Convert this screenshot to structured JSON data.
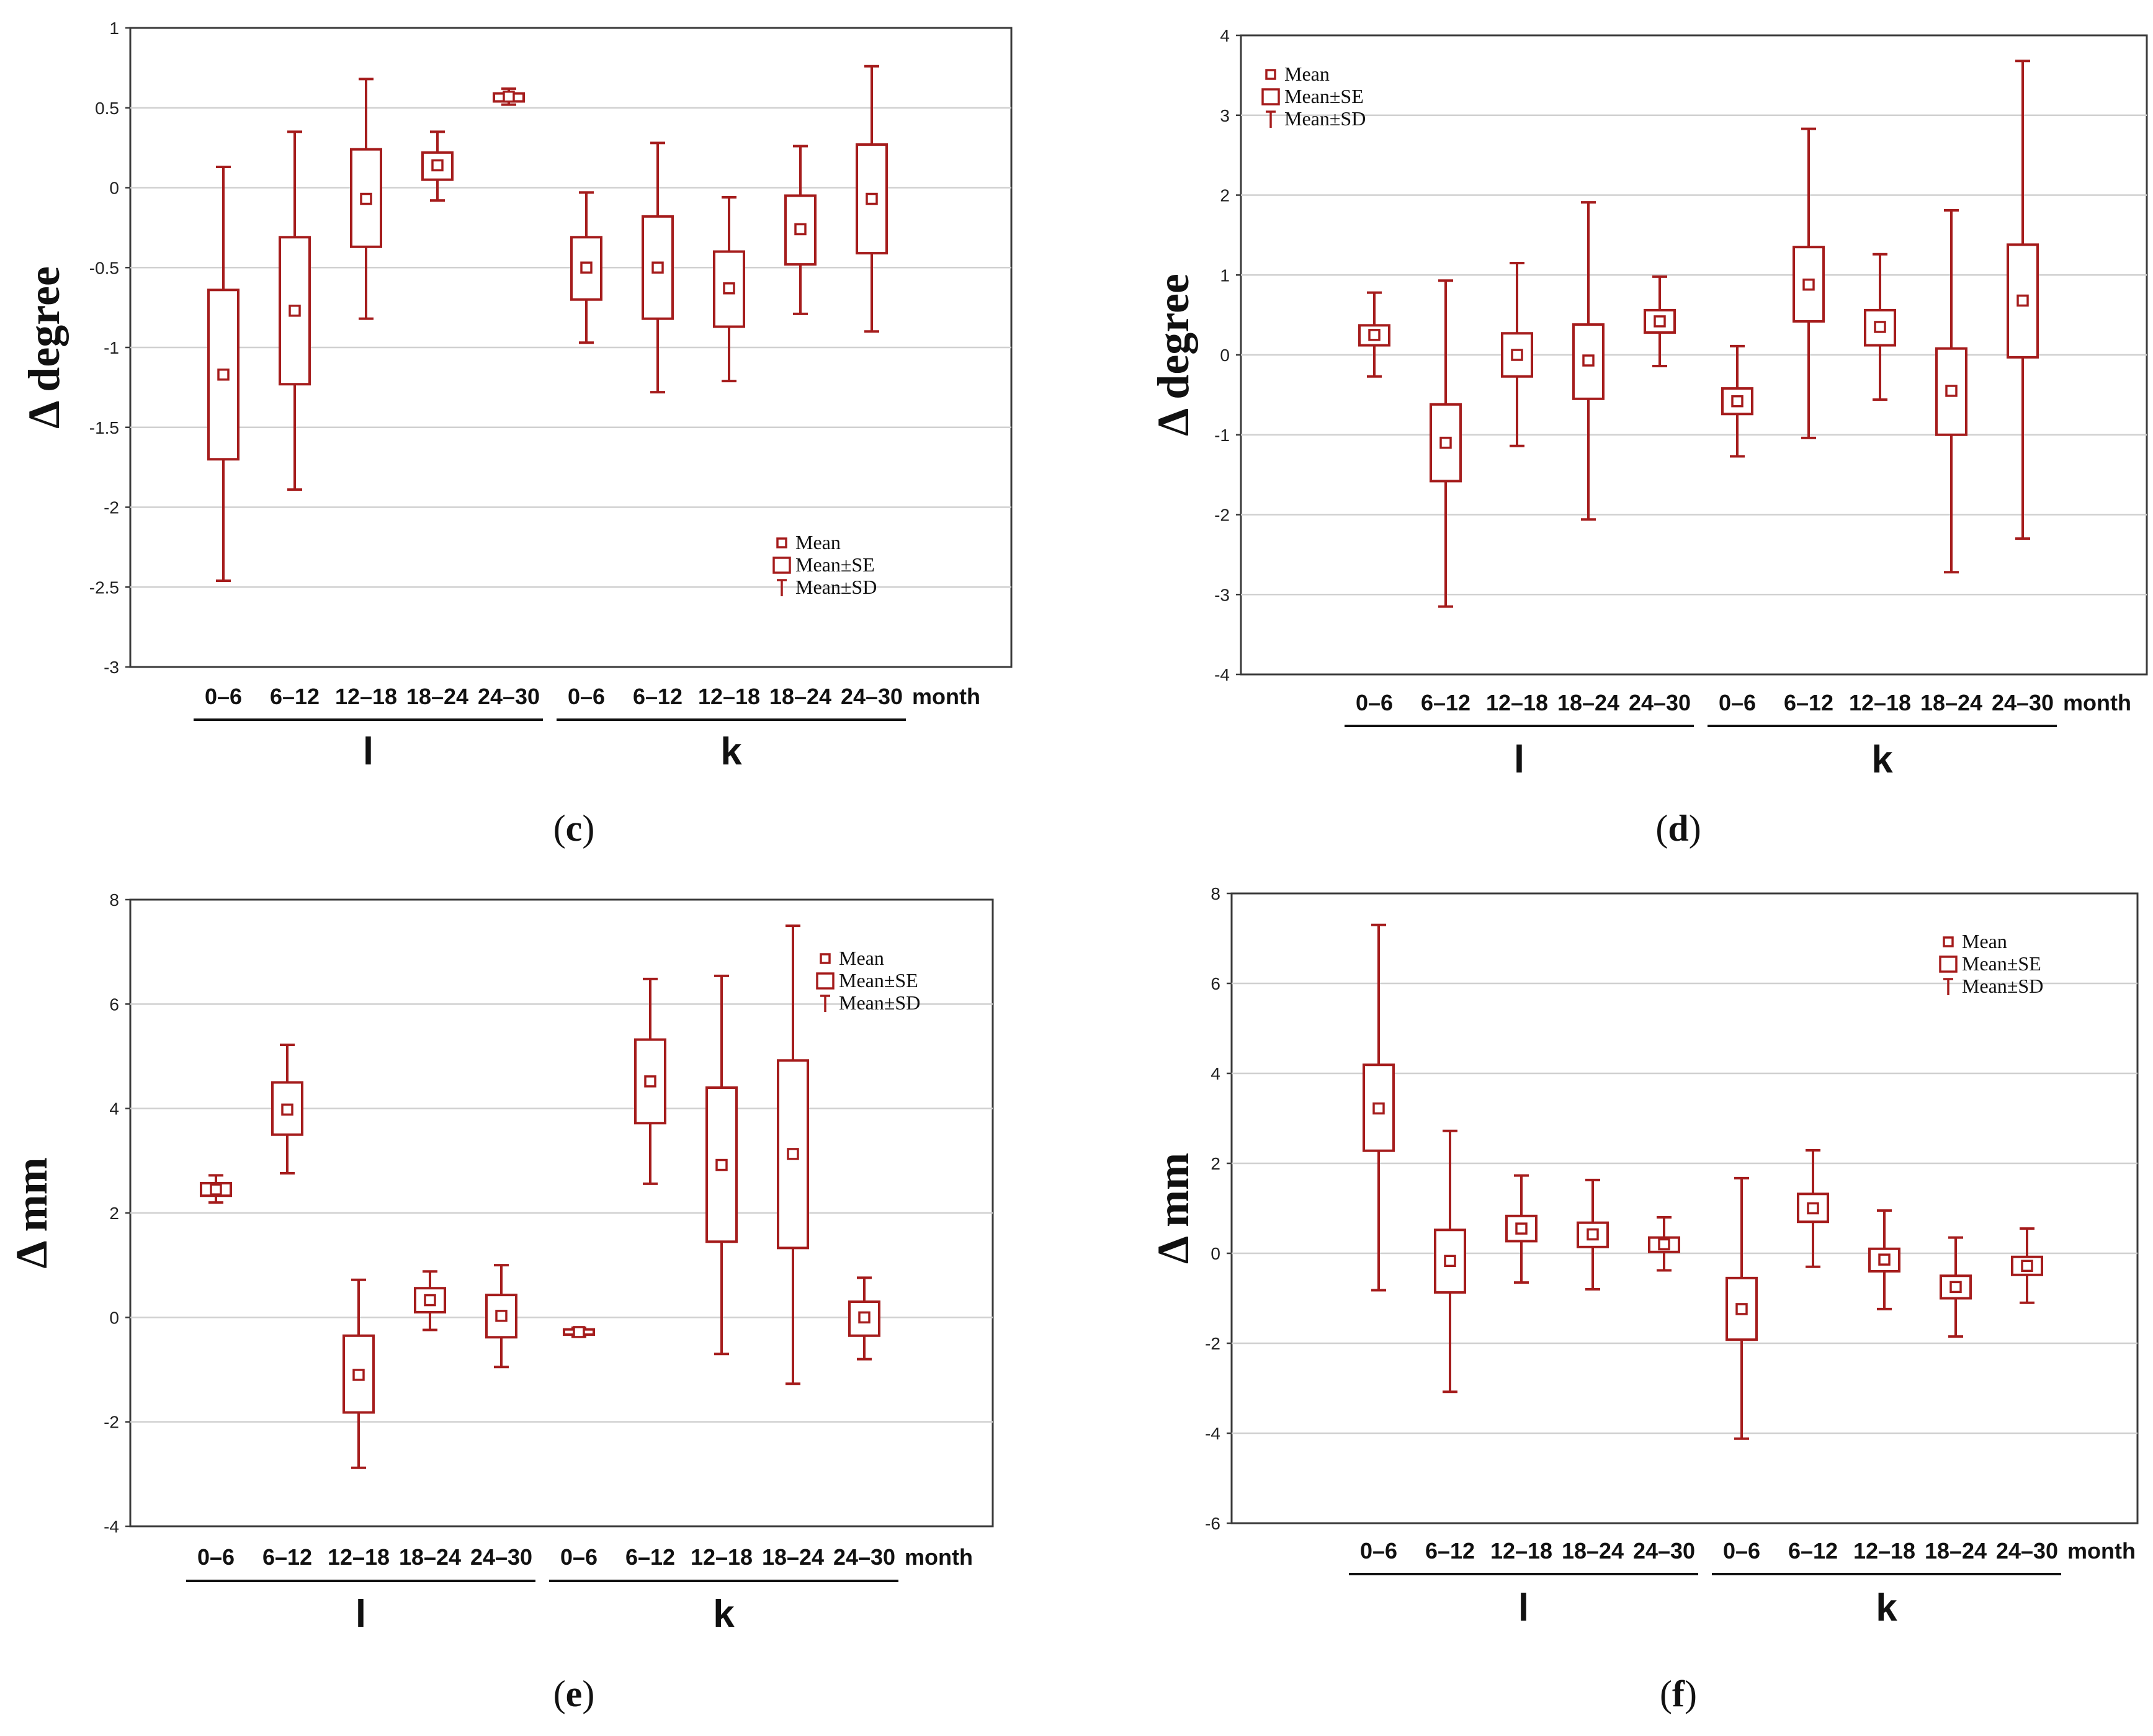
{
  "figure": {
    "legend": {
      "mean": "Mean",
      "se": "Mean±SE",
      "sd": "Mean±SD"
    },
    "category_unit": "month",
    "panel_labels": [
      {
        "open": "(",
        "letter": "c",
        "close": ")"
      },
      {
        "open": "(",
        "letter": "d",
        "close": ")"
      },
      {
        "open": "(",
        "letter": "e",
        "close": ")"
      },
      {
        "open": "(",
        "letter": "f",
        "close": ")"
      }
    ],
    "colors": {
      "series": "#a51c1c",
      "grid": "#d0d0d0",
      "axis": "#3a3a3a"
    }
  },
  "chart_data": [
    {
      "type": "box",
      "panel": "c",
      "ylabel": "Δ degree",
      "ylim": [
        -3,
        1
      ],
      "yticks": [
        -3,
        -2.5,
        -2,
        -1.5,
        -1,
        -0.5,
        0,
        0.5,
        1
      ],
      "ytick_labels": [
        "-3",
        "-2.5",
        "-2",
        "-1.5",
        "-1",
        "-0.5",
        "0",
        "0.5",
        "1"
      ],
      "categories": [
        "0–6",
        "6–12",
        "12–18",
        "18–24",
        "24–30",
        "0–6",
        "6–12",
        "12–18",
        "18–24",
        "24–30"
      ],
      "groups": [
        {
          "label": "l",
          "from": 0,
          "to": 4
        },
        {
          "label": "k",
          "from": 5,
          "to": 9
        }
      ],
      "series": [
        {
          "name": "Δ degree",
          "mean": [
            -1.17,
            -0.77,
            -0.07,
            0.14,
            0.57,
            -0.5,
            -0.5,
            -0.63,
            -0.26,
            -0.07
          ],
          "se_low": [
            -1.7,
            -1.23,
            -0.37,
            0.05,
            0.54,
            -0.7,
            -0.82,
            -0.87,
            -0.48,
            -0.41
          ],
          "se_high": [
            -0.64,
            -0.31,
            0.24,
            0.22,
            0.59,
            -0.31,
            -0.18,
            -0.4,
            -0.05,
            0.27
          ],
          "sd_low": [
            -2.46,
            -1.89,
            -0.82,
            -0.08,
            0.52,
            -0.97,
            -1.28,
            -1.21,
            -0.79,
            -0.9
          ],
          "sd_high": [
            0.13,
            0.35,
            0.68,
            0.35,
            0.62,
            -0.03,
            0.28,
            -0.06,
            0.26,
            0.76
          ]
        }
      ]
    },
    {
      "type": "box",
      "panel": "d",
      "ylabel": "Δ degree",
      "ylim": [
        -4,
        4
      ],
      "yticks": [
        -4,
        -3,
        -2,
        -1,
        0,
        1,
        2,
        3,
        4
      ],
      "ytick_labels": [
        "-4",
        "-3",
        "-2",
        "-1",
        "0",
        "1",
        "2",
        "3",
        "4"
      ],
      "categories": [
        "0–6",
        "6–12",
        "12–18",
        "18–24",
        "24–30",
        "0–6",
        "6–12",
        "12–18",
        "18–24",
        "24–30"
      ],
      "groups": [
        {
          "label": "l",
          "from": 0,
          "to": 4
        },
        {
          "label": "k",
          "from": 5,
          "to": 9
        }
      ],
      "series": [
        {
          "name": "Δ degree",
          "mean": [
            0.25,
            -1.1,
            0.0,
            -0.07,
            0.42,
            -0.58,
            0.88,
            0.35,
            -0.45,
            0.68
          ],
          "se_low": [
            0.12,
            -1.58,
            -0.27,
            -0.55,
            0.28,
            -0.74,
            0.42,
            0.12,
            -1.0,
            -0.03
          ],
          "se_high": [
            0.37,
            -0.62,
            0.27,
            0.38,
            0.56,
            -0.42,
            1.35,
            0.56,
            0.08,
            1.38
          ],
          "sd_low": [
            -0.27,
            -3.15,
            -1.14,
            -2.06,
            -0.14,
            -1.27,
            -1.04,
            -0.56,
            -2.72,
            -2.3
          ],
          "sd_high": [
            0.78,
            0.93,
            1.15,
            1.91,
            0.98,
            0.11,
            2.83,
            1.26,
            1.81,
            3.68
          ]
        }
      ]
    },
    {
      "type": "box",
      "panel": "e",
      "ylabel": "Δ mm",
      "ylim": [
        -4,
        8
      ],
      "yticks": [
        -4,
        -2,
        0,
        2,
        4,
        6,
        8
      ],
      "ytick_labels": [
        "-4",
        "-2",
        "0",
        "2",
        "4",
        "6",
        "8"
      ],
      "categories": [
        "0–6",
        "6–12",
        "12–18",
        "18–24",
        "24–30",
        "0–6",
        "6–12",
        "12–18",
        "18–24",
        "24–30"
      ],
      "groups": [
        {
          "label": "l",
          "from": 0,
          "to": 4
        },
        {
          "label": "k",
          "from": 5,
          "to": 9
        }
      ],
      "series": [
        {
          "name": "Δ mm",
          "mean": [
            2.45,
            3.98,
            -1.1,
            0.33,
            0.03,
            -0.28,
            4.52,
            2.92,
            3.13,
            0.0
          ],
          "se_low": [
            2.33,
            3.5,
            -1.82,
            0.1,
            -0.38,
            -0.33,
            3.72,
            1.45,
            1.33,
            -0.35
          ],
          "se_high": [
            2.57,
            4.5,
            -0.35,
            0.56,
            0.43,
            -0.23,
            5.32,
            4.4,
            4.92,
            0.3
          ],
          "sd_low": [
            2.2,
            2.76,
            -2.88,
            -0.24,
            -0.95,
            -0.37,
            2.56,
            -0.7,
            -1.27,
            -0.8
          ],
          "sd_high": [
            2.72,
            5.22,
            0.72,
            0.88,
            1.0,
            -0.2,
            6.48,
            6.54,
            7.5,
            0.76
          ]
        }
      ]
    },
    {
      "type": "box",
      "panel": "f",
      "ylabel": "Δ mm",
      "ylim": [
        -6,
        8
      ],
      "yticks": [
        -6,
        -4,
        -2,
        0,
        2,
        4,
        6,
        8
      ],
      "ytick_labels": [
        "-6",
        "-4",
        "-2",
        "0",
        "2",
        "4",
        "6",
        "8"
      ],
      "categories": [
        "0–6",
        "6–12",
        "12–18",
        "18–24",
        "24–30",
        "0–6",
        "6–12",
        "12–18",
        "18–24",
        "24–30"
      ],
      "groups": [
        {
          "label": "l",
          "from": 0,
          "to": 4
        },
        {
          "label": "k",
          "from": 5,
          "to": 9
        }
      ],
      "series": [
        {
          "name": "Δ mm",
          "mean": [
            3.22,
            -0.17,
            0.55,
            0.42,
            0.2,
            -1.24,
            1.0,
            -0.14,
            -0.75,
            -0.28
          ],
          "se_low": [
            2.28,
            -0.87,
            0.27,
            0.14,
            0.03,
            -1.92,
            0.7,
            -0.4,
            -1.0,
            -0.48
          ],
          "se_high": [
            4.19,
            0.52,
            0.83,
            0.68,
            0.35,
            -0.55,
            1.32,
            0.1,
            -0.5,
            -0.08
          ],
          "sd_low": [
            -0.82,
            -3.08,
            -0.65,
            -0.8,
            -0.38,
            -4.12,
            -0.3,
            -1.24,
            -1.85,
            -1.1
          ],
          "sd_high": [
            7.3,
            2.72,
            1.73,
            1.63,
            0.8,
            1.67,
            2.29,
            0.95,
            0.35,
            0.55
          ]
        }
      ]
    }
  ]
}
